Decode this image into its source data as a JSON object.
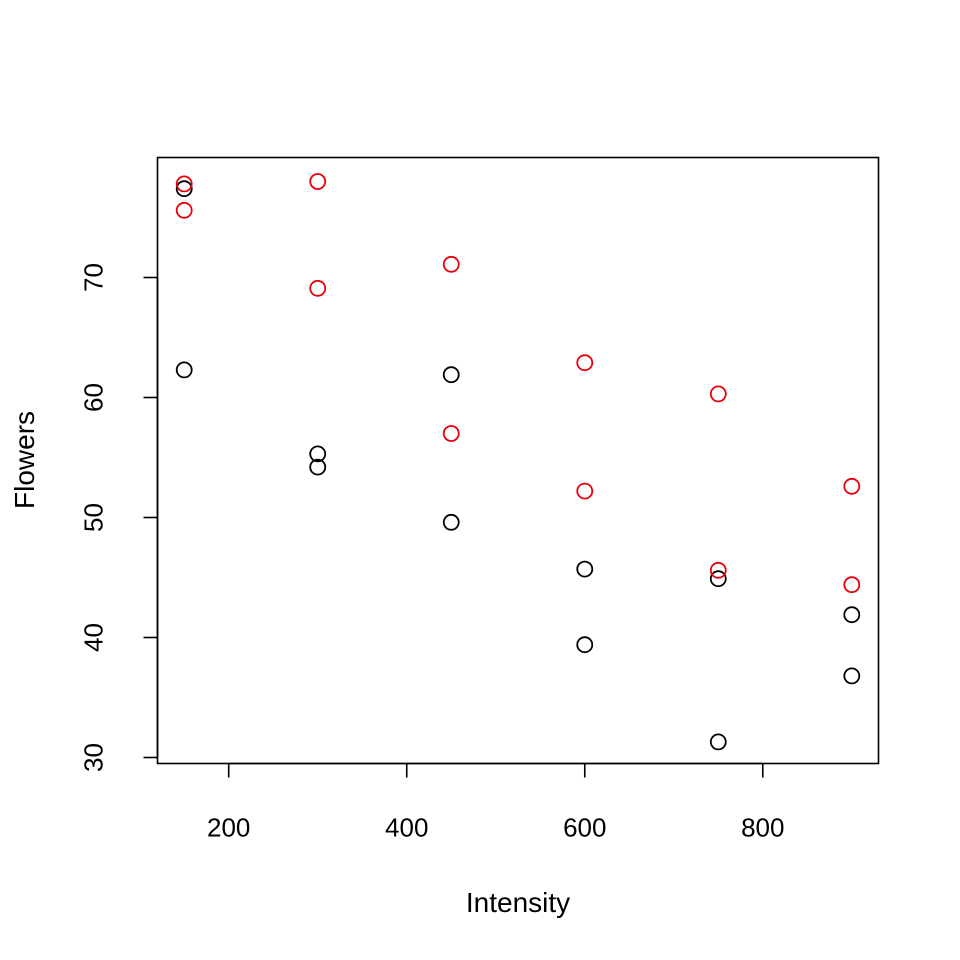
{
  "chart_data": {
    "type": "scatter",
    "title": "",
    "xlabel": "Intensity",
    "ylabel": "Flowers",
    "xlim": [
      120,
      930
    ],
    "ylim": [
      29.5,
      80
    ],
    "xticks": [
      200,
      400,
      600,
      800
    ],
    "yticks": [
      30,
      40,
      50,
      60,
      70
    ],
    "grid": false,
    "legend": "none",
    "series": [
      {
        "color": "#000000",
        "points": [
          [
            150,
            77.4
          ],
          [
            150,
            62.3
          ],
          [
            300,
            55.3
          ],
          [
            300,
            54.2
          ],
          [
            450,
            61.9
          ],
          [
            450,
            49.6
          ],
          [
            600,
            45.7
          ],
          [
            600,
            39.4
          ],
          [
            750,
            44.9
          ],
          [
            750,
            31.3
          ],
          [
            900,
            41.9
          ],
          [
            900,
            36.8
          ]
        ]
      },
      {
        "color": "#e8000b",
        "points": [
          [
            150,
            77.8
          ],
          [
            150,
            75.6
          ],
          [
            300,
            78.0
          ],
          [
            300,
            69.1
          ],
          [
            450,
            71.1
          ],
          [
            450,
            57.0
          ],
          [
            600,
            62.9
          ],
          [
            600,
            52.2
          ],
          [
            750,
            60.3
          ],
          [
            750,
            45.6
          ],
          [
            900,
            52.6
          ],
          [
            900,
            44.4
          ]
        ]
      }
    ]
  }
}
